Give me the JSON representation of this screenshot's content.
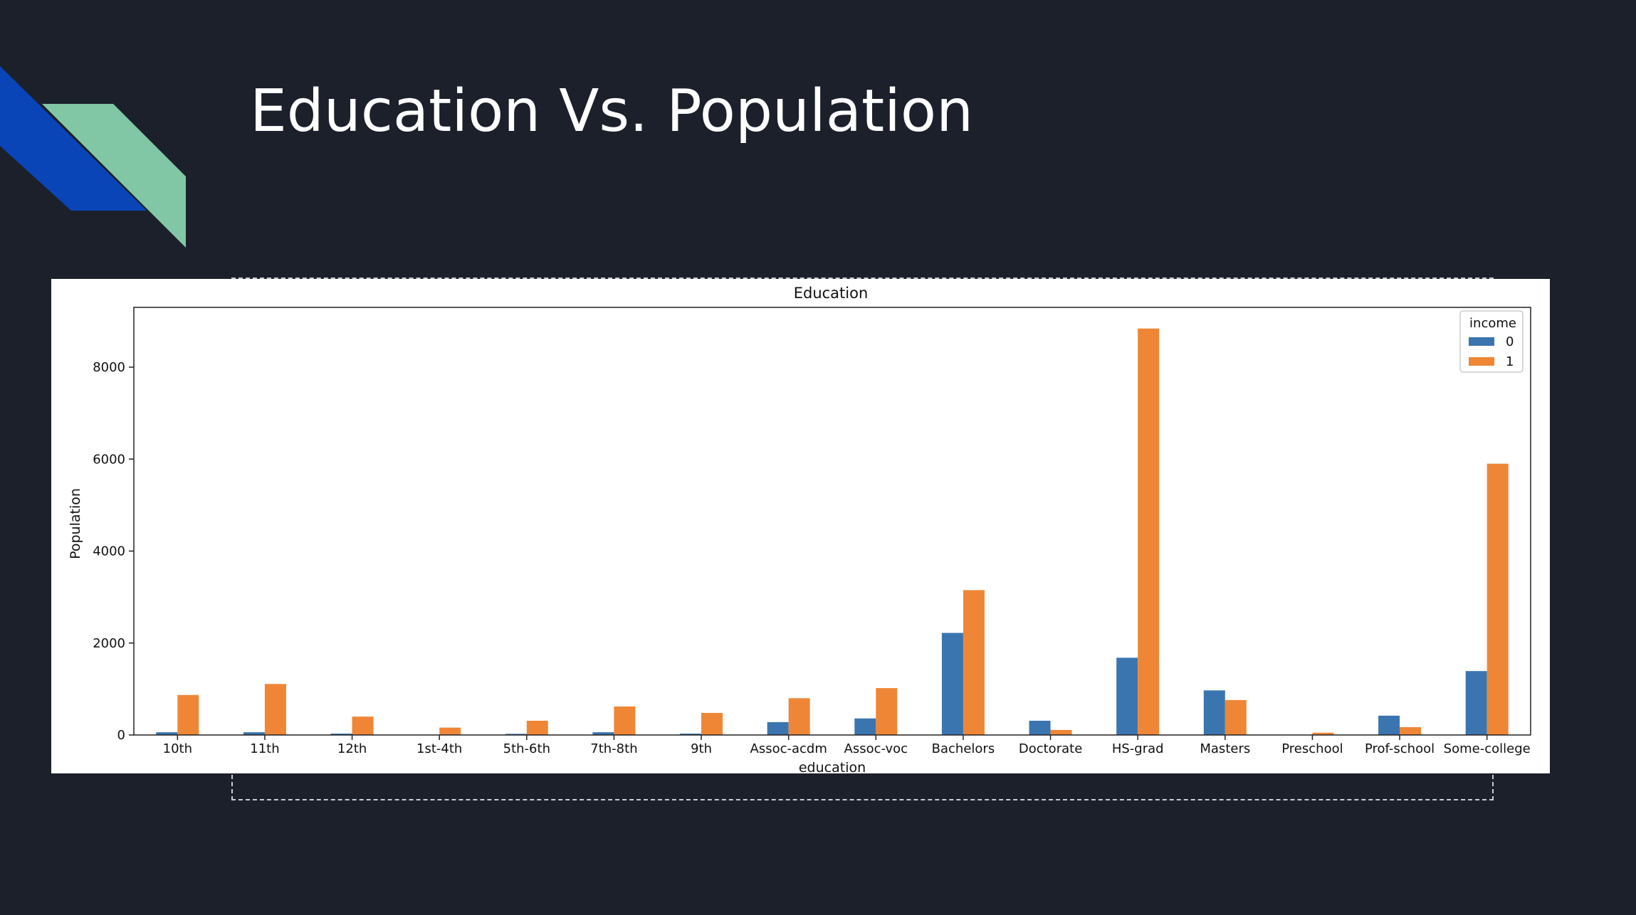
{
  "slide": {
    "title": "Education Vs. Population",
    "background_color": "#1b202b",
    "accent_colors": {
      "blue_stripe": "#0a45b8",
      "green_stripe": "#82c7a5"
    }
  },
  "chart_data": {
    "type": "bar",
    "title": "Education",
    "xlabel": "education",
    "ylabel": "Population",
    "ylim": [
      0,
      9300
    ],
    "yticks": [
      0,
      2000,
      4000,
      6000,
      8000
    ],
    "grid": false,
    "legend_title": "income",
    "legend_position": "top-right",
    "categories": [
      "10th",
      "11th",
      "12th",
      "1st-4th",
      "5th-6th",
      "7th-8th",
      "9th",
      "Assoc-acdm",
      "Assoc-voc",
      "Bachelors",
      "Doctorate",
      "HS-grad",
      "Masters",
      "Preschool",
      "Prof-school",
      "Some-college"
    ],
    "series": [
      {
        "name": "0",
        "color": "#3a75b0",
        "values": [
          60,
          60,
          30,
          5,
          25,
          60,
          30,
          280,
          360,
          2220,
          310,
          1680,
          970,
          0,
          420,
          1390
        ]
      },
      {
        "name": "1",
        "color": "#ef8636",
        "values": [
          870,
          1110,
          400,
          160,
          310,
          620,
          480,
          800,
          1020,
          3150,
          110,
          8840,
          760,
          50,
          170,
          5900
        ]
      }
    ]
  }
}
